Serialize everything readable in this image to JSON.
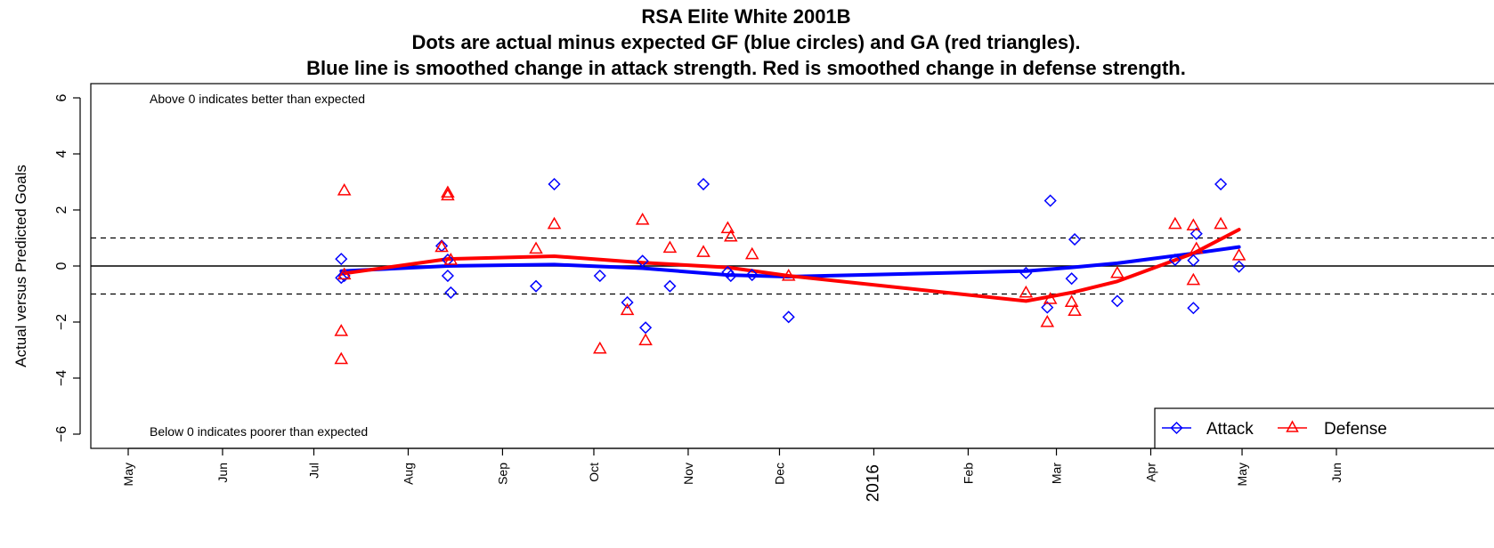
{
  "chart_data": {
    "type": "scatter",
    "title": "RSA Elite White 2001B",
    "subtitle_lines": [
      "Dots are actual minus expected GF (blue circles) and GA (red triangles).",
      "Blue line is smoothed change in attack strength. Red is smoothed change in defense strength."
    ],
    "ylabel": "Actual versus Predicted Goals",
    "ylim": [
      -6,
      6
    ],
    "y_ticks": [
      -6,
      -4,
      -2,
      0,
      2,
      4,
      6
    ],
    "y_tick_labels": [
      "−6",
      "−4",
      "−2",
      "0",
      "2",
      "4",
      "6"
    ],
    "x_ticks": [
      {
        "date": "2015-05-01",
        "label": "May"
      },
      {
        "date": "2015-06-01",
        "label": "Jun"
      },
      {
        "date": "2015-07-01",
        "label": "Jul"
      },
      {
        "date": "2015-08-01",
        "label": "Aug"
      },
      {
        "date": "2015-09-01",
        "label": "Sep"
      },
      {
        "date": "2015-10-01",
        "label": "Oct"
      },
      {
        "date": "2015-11-01",
        "label": "Nov"
      },
      {
        "date": "2015-12-01",
        "label": "Dec"
      },
      {
        "date": "2016-01-01",
        "label": "2016"
      },
      {
        "date": "2016-02-01",
        "label": "Feb"
      },
      {
        "date": "2016-03-01",
        "label": "Mar"
      },
      {
        "date": "2016-04-01",
        "label": "Apr"
      },
      {
        "date": "2016-05-01",
        "label": "May"
      },
      {
        "date": "2016-06-01",
        "label": "Jun"
      }
    ],
    "reference_lines": {
      "solid": [
        0
      ],
      "dashed": [
        -1,
        1
      ]
    },
    "annotations": {
      "top": "Above 0 indicates better than expected",
      "bottom": "Below 0 indicates poorer than expected"
    },
    "legend": {
      "position": "bottom-right",
      "entries": [
        {
          "label": "Attack",
          "color": "#0000ff",
          "marker": "diamond"
        },
        {
          "label": "Defense",
          "color": "#ff0000",
          "marker": "triangle"
        }
      ]
    },
    "series": [
      {
        "name": "Attack",
        "kind": "points",
        "color": "#0000ff",
        "marker": "diamond",
        "points": [
          {
            "x": "2015-07-10",
            "y": 0.25
          },
          {
            "x": "2015-07-10",
            "y": -0.42
          },
          {
            "x": "2015-07-11",
            "y": -0.35
          },
          {
            "x": "2015-08-12",
            "y": 0.72
          },
          {
            "x": "2015-08-14",
            "y": 0.22
          },
          {
            "x": "2015-08-14",
            "y": -0.35
          },
          {
            "x": "2015-08-15",
            "y": -0.95
          },
          {
            "x": "2015-09-12",
            "y": -0.72
          },
          {
            "x": "2015-09-18",
            "y": 2.92
          },
          {
            "x": "2015-10-03",
            "y": -0.35
          },
          {
            "x": "2015-10-12",
            "y": -1.3
          },
          {
            "x": "2015-10-17",
            "y": 0.18
          },
          {
            "x": "2015-10-18",
            "y": -2.2
          },
          {
            "x": "2015-10-26",
            "y": -0.72
          },
          {
            "x": "2015-11-06",
            "y": 2.92
          },
          {
            "x": "2015-11-14",
            "y": -0.22
          },
          {
            "x": "2015-11-15",
            "y": -0.35
          },
          {
            "x": "2015-11-22",
            "y": -0.32
          },
          {
            "x": "2015-12-04",
            "y": -1.82
          },
          {
            "x": "2016-02-20",
            "y": -0.25
          },
          {
            "x": "2016-02-27",
            "y": -1.48
          },
          {
            "x": "2016-02-28",
            "y": 2.33
          },
          {
            "x": "2016-03-06",
            "y": -0.45
          },
          {
            "x": "2016-03-07",
            "y": 0.95
          },
          {
            "x": "2016-03-21",
            "y": -1.25
          },
          {
            "x": "2016-04-09",
            "y": 0.22
          },
          {
            "x": "2016-04-15",
            "y": 0.2
          },
          {
            "x": "2016-04-15",
            "y": -1.5
          },
          {
            "x": "2016-04-16",
            "y": 1.15
          },
          {
            "x": "2016-04-24",
            "y": 2.92
          },
          {
            "x": "2016-04-30",
            "y": -0.02
          }
        ]
      },
      {
        "name": "Defense",
        "kind": "points",
        "color": "#ff0000",
        "marker": "triangle",
        "points": [
          {
            "x": "2015-07-10",
            "y": -2.32
          },
          {
            "x": "2015-07-10",
            "y": -3.32
          },
          {
            "x": "2015-07-11",
            "y": 2.7
          },
          {
            "x": "2015-07-11",
            "y": -0.3
          },
          {
            "x": "2015-08-12",
            "y": 0.68
          },
          {
            "x": "2015-08-14",
            "y": 2.62
          },
          {
            "x": "2015-08-14",
            "y": 2.52
          },
          {
            "x": "2015-08-15",
            "y": 0.22
          },
          {
            "x": "2015-09-12",
            "y": 0.62
          },
          {
            "x": "2015-09-18",
            "y": 1.5
          },
          {
            "x": "2015-10-03",
            "y": -2.95
          },
          {
            "x": "2015-10-12",
            "y": -1.57
          },
          {
            "x": "2015-10-17",
            "y": 1.65
          },
          {
            "x": "2015-10-18",
            "y": -2.65
          },
          {
            "x": "2015-10-26",
            "y": 0.65
          },
          {
            "x": "2015-11-06",
            "y": 0.5
          },
          {
            "x": "2015-11-14",
            "y": 1.35
          },
          {
            "x": "2015-11-15",
            "y": 1.05
          },
          {
            "x": "2015-11-22",
            "y": 0.42
          },
          {
            "x": "2015-12-04",
            "y": -0.35
          },
          {
            "x": "2016-02-20",
            "y": -0.95
          },
          {
            "x": "2016-02-27",
            "y": -2.0
          },
          {
            "x": "2016-02-28",
            "y": -1.18
          },
          {
            "x": "2016-03-06",
            "y": -1.28
          },
          {
            "x": "2016-03-07",
            "y": -1.6
          },
          {
            "x": "2016-03-21",
            "y": -0.25
          },
          {
            "x": "2016-04-09",
            "y": 1.5
          },
          {
            "x": "2016-04-15",
            "y": 1.45
          },
          {
            "x": "2016-04-15",
            "y": -0.5
          },
          {
            "x": "2016-04-16",
            "y": 0.62
          },
          {
            "x": "2016-04-24",
            "y": 1.5
          },
          {
            "x": "2016-04-30",
            "y": 0.38
          }
        ]
      },
      {
        "name": "Attack",
        "kind": "smooth-line",
        "color": "#0000ff",
        "points": [
          {
            "x": "2015-07-10",
            "y": -0.18
          },
          {
            "x": "2015-08-14",
            "y": 0.0
          },
          {
            "x": "2015-09-18",
            "y": 0.05
          },
          {
            "x": "2015-10-17",
            "y": -0.08
          },
          {
            "x": "2015-11-14",
            "y": -0.32
          },
          {
            "x": "2015-12-04",
            "y": -0.38
          },
          {
            "x": "2016-02-20",
            "y": -0.18
          },
          {
            "x": "2016-03-06",
            "y": -0.05
          },
          {
            "x": "2016-03-21",
            "y": 0.1
          },
          {
            "x": "2016-04-15",
            "y": 0.45
          },
          {
            "x": "2016-04-30",
            "y": 0.68
          }
        ]
      },
      {
        "name": "Defense",
        "kind": "smooth-line",
        "color": "#ff0000",
        "points": [
          {
            "x": "2015-07-10",
            "y": -0.28
          },
          {
            "x": "2015-08-14",
            "y": 0.25
          },
          {
            "x": "2015-09-18",
            "y": 0.35
          },
          {
            "x": "2015-10-17",
            "y": 0.12
          },
          {
            "x": "2015-11-14",
            "y": -0.05
          },
          {
            "x": "2015-12-04",
            "y": -0.35
          },
          {
            "x": "2016-02-20",
            "y": -1.25
          },
          {
            "x": "2016-03-06",
            "y": -0.95
          },
          {
            "x": "2016-03-21",
            "y": -0.55
          },
          {
            "x": "2016-04-15",
            "y": 0.45
          },
          {
            "x": "2016-04-30",
            "y": 1.3
          }
        ]
      }
    ]
  }
}
